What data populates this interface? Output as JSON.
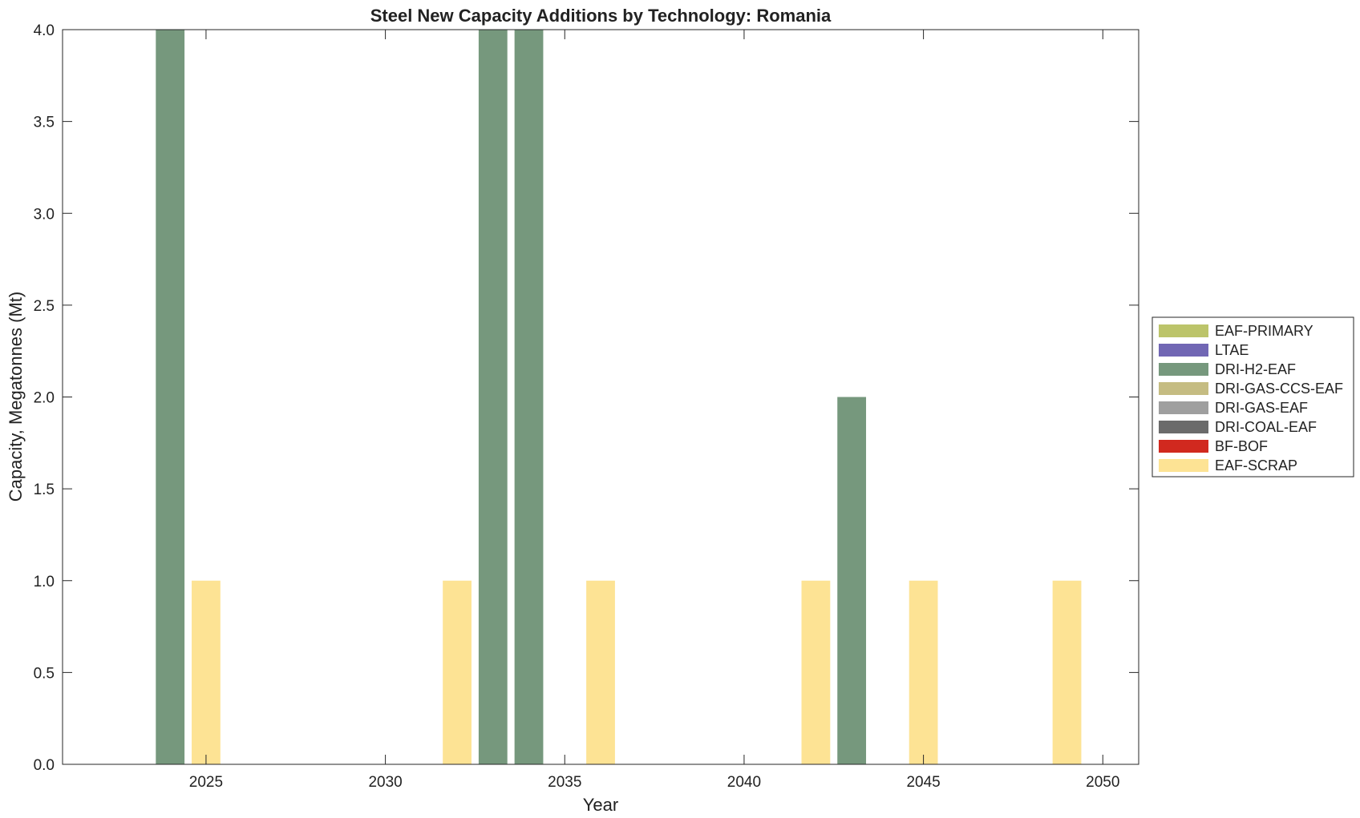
{
  "chart_data": {
    "type": "bar",
    "title": "Steel New Capacity Additions by Technology: Romania",
    "xlabel": "Year",
    "ylabel": "Capacity, Megatonnes (Mt)",
    "xlim": [
      2021,
      2051
    ],
    "ylim": [
      0,
      4
    ],
    "xticks": [
      2025,
      2030,
      2035,
      2040,
      2045,
      2050
    ],
    "yticks": [
      "0.0",
      "0.5",
      "1.0",
      "1.5",
      "2.0",
      "2.5",
      "3.0",
      "3.5",
      "4.0"
    ],
    "grid": false,
    "legend_position": "right",
    "series": [
      {
        "name": "EAF-PRIMARY",
        "color": "#bcc46a",
        "points": []
      },
      {
        "name": "LTAE",
        "color": "#7167b4",
        "points": []
      },
      {
        "name": "DRI-H2-EAF",
        "color": "#76987d",
        "points": [
          {
            "x": 2024,
            "y": 4.0
          },
          {
            "x": 2033,
            "y": 4.0
          },
          {
            "x": 2034,
            "y": 4.0
          },
          {
            "x": 2043,
            "y": 2.0
          }
        ]
      },
      {
        "name": "DRI-GAS-CCS-EAF",
        "color": "#c5bc82",
        "points": []
      },
      {
        "name": "DRI-GAS-EAF",
        "color": "#9f9f9f",
        "points": []
      },
      {
        "name": "DRI-COAL-EAF",
        "color": "#6b6b6b",
        "points": []
      },
      {
        "name": "BF-BOF",
        "color": "#d1291f",
        "points": []
      },
      {
        "name": "EAF-SCRAP",
        "color": "#fde394",
        "points": [
          {
            "x": 2025,
            "y": 1.0
          },
          {
            "x": 2032,
            "y": 1.0
          },
          {
            "x": 2036,
            "y": 1.0
          },
          {
            "x": 2042,
            "y": 1.0
          },
          {
            "x": 2045,
            "y": 1.0
          },
          {
            "x": 2049,
            "y": 1.0
          }
        ]
      }
    ]
  }
}
